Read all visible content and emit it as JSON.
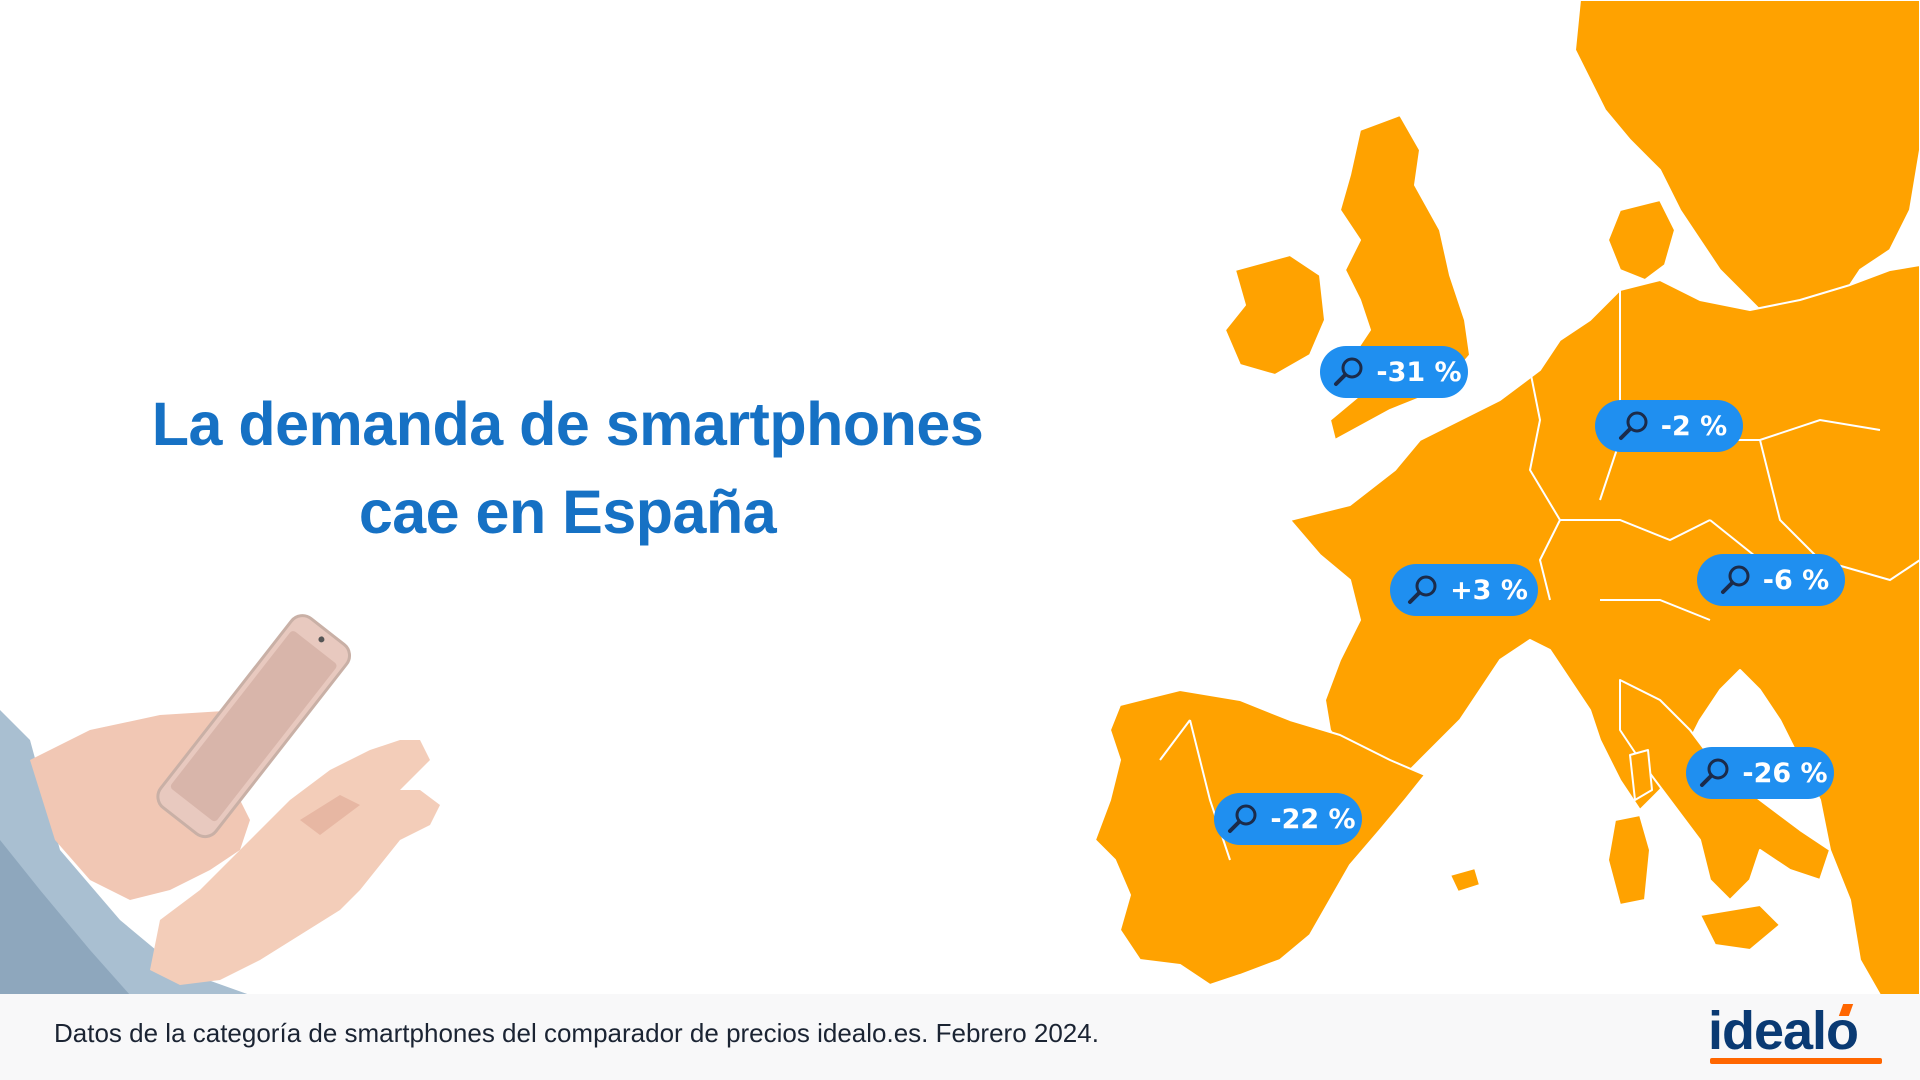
{
  "headline": {
    "line1": "La demanda de smartphones",
    "line2": "cae en España"
  },
  "map": {
    "land_color": "#ffa200",
    "border_color": "#ffffff",
    "badge_color": "#1f8ff0",
    "badges": [
      {
        "country": "Reino Unido",
        "label": "-31 %",
        "icon": "magnifier-icon"
      },
      {
        "country": "Alemania",
        "label": "-2 %",
        "icon": "magnifier-icon"
      },
      {
        "country": "Francia",
        "label": "+3 %",
        "icon": "magnifier-icon"
      },
      {
        "country": "Austria",
        "label": "-6 %",
        "icon": "magnifier-icon"
      },
      {
        "country": "Italia",
        "label": "-26 %",
        "icon": "magnifier-icon"
      },
      {
        "country": "España",
        "label": "-22 %",
        "icon": "magnifier-icon"
      }
    ]
  },
  "footer": {
    "source": "Datos de la categoría de smartphones del comparador de precios idealo.es.  Febrero 2024.",
    "logo": "idealo",
    "logo_accent": "#ff6600",
    "logo_color": "#0a3a73"
  }
}
